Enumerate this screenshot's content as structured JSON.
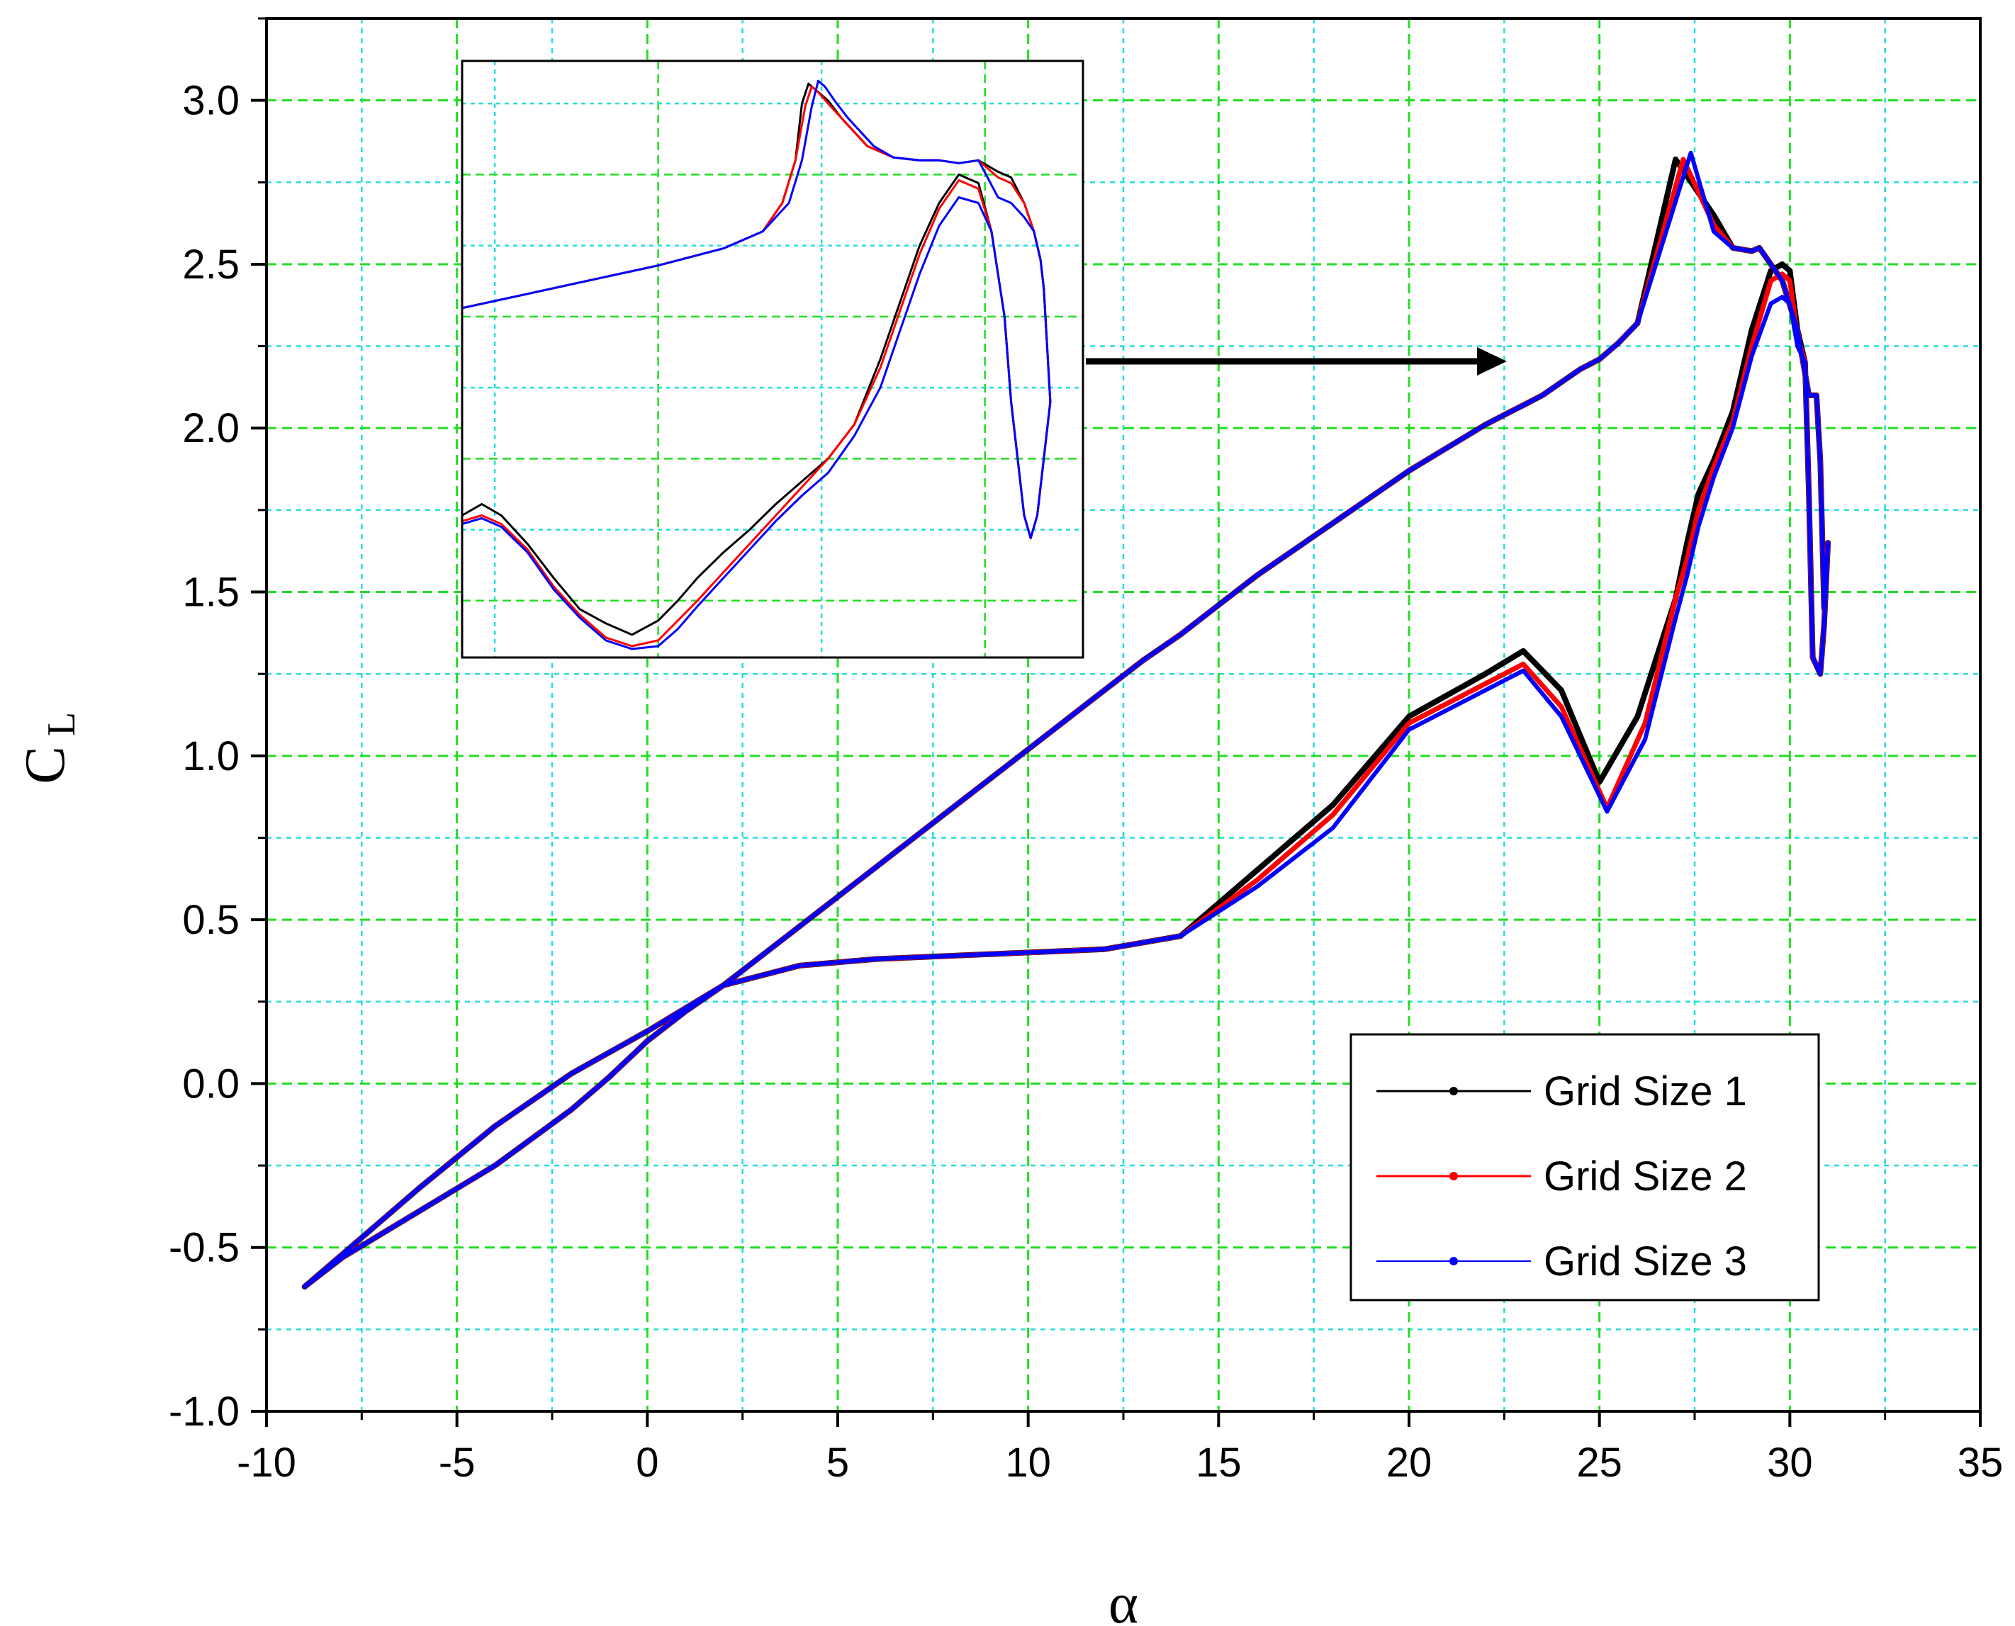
{
  "chart_data": [
    {
      "type": "line",
      "role": "main",
      "xlabel": "α",
      "ylabel": "C",
      "ylabel_sub": "L",
      "xlim": [
        -10,
        35
      ],
      "ylim": [
        -1.0,
        3.25
      ],
      "xticks": [
        -10,
        -5,
        0,
        5,
        10,
        15,
        20,
        25,
        30,
        35
      ],
      "xtick_labels": [
        "-10",
        "-5",
        "0",
        "5",
        "10",
        "15",
        "20",
        "25",
        "30",
        "35"
      ],
      "yticks": [
        -1.0,
        -0.5,
        0.0,
        0.5,
        1.0,
        1.5,
        2.0,
        2.5,
        3.0
      ],
      "ytick_labels": [
        "-1.0",
        "-0.5",
        "0.0",
        "0.5",
        "1.0",
        "1.5",
        "2.0",
        "2.5",
        "3.0"
      ],
      "grid": true,
      "legend_position": "bottom-right",
      "colors": {
        "grid_major": "#22dd22",
        "grid_minor": "#22dddd"
      },
      "series": [
        {
          "name": "Grid Size 1",
          "color": "#000000",
          "x": [
            -9.0,
            -8.0,
            -6.0,
            -4.0,
            -2.0,
            0.0,
            2.0,
            4.0,
            6.0,
            8.0,
            10.0,
            12.0,
            14.0,
            16.0,
            18.0,
            20.0,
            22.0,
            23.0,
            24.0,
            25.0,
            26.0,
            27.0,
            27.3,
            27.6,
            28.0,
            28.5,
            29.0,
            29.5,
            29.8,
            30.0,
            30.2,
            30.4,
            30.5,
            30.6,
            30.8,
            30.9,
            31.0,
            30.9,
            30.8,
            30.7,
            30.5,
            30.2,
            29.8,
            29.5,
            29.2,
            29.0,
            28.5,
            28.0,
            27.0,
            26.0,
            25.5,
            25.0,
            24.5,
            24.0,
            23.5,
            23.0,
            22.5,
            22.0,
            21.0,
            20.0,
            19.0,
            18.0,
            17.0,
            16.0,
            15.0,
            14.0,
            13.0,
            12.0,
            10.0,
            8.0,
            6.0,
            4.0,
            2.0,
            1.0,
            0.0,
            -1.0,
            -2.0,
            -4.0,
            -6.0,
            -8.0,
            -9.0
          ],
          "y": [
            -0.62,
            -0.52,
            -0.32,
            -0.13,
            0.03,
            0.16,
            0.3,
            0.36,
            0.38,
            0.39,
            0.4,
            0.41,
            0.45,
            0.65,
            0.85,
            1.12,
            1.25,
            1.32,
            1.2,
            0.92,
            1.12,
            1.48,
            1.65,
            1.8,
            1.9,
            2.05,
            2.3,
            2.48,
            2.5,
            2.48,
            2.3,
            2.2,
            1.8,
            1.3,
            1.25,
            1.4,
            1.65,
            1.45,
            1.9,
            2.1,
            2.1,
            2.3,
            2.45,
            2.5,
            2.55,
            2.54,
            2.55,
            2.65,
            2.82,
            2.32,
            2.26,
            2.21,
            2.18,
            2.14,
            2.1,
            2.07,
            2.04,
            2.01,
            1.94,
            1.87,
            1.79,
            1.71,
            1.63,
            1.55,
            1.46,
            1.37,
            1.29,
            1.2,
            1.02,
            0.84,
            0.66,
            0.48,
            0.3,
            0.22,
            0.13,
            0.02,
            -0.08,
            -0.25,
            -0.39,
            -0.53,
            -0.62
          ]
        },
        {
          "name": "Grid Size 2",
          "color": "#ff0000",
          "x": [
            -9.0,
            -8.0,
            -6.0,
            -4.0,
            -2.0,
            0.0,
            2.0,
            4.0,
            6.0,
            8.0,
            10.0,
            12.0,
            14.0,
            16.0,
            18.0,
            20.0,
            22.0,
            23.0,
            24.0,
            25.2,
            26.2,
            27.0,
            27.3,
            27.6,
            28.0,
            28.5,
            29.0,
            29.5,
            29.8,
            30.0,
            30.2,
            30.4,
            30.5,
            30.6,
            30.8,
            30.9,
            31.0,
            30.9,
            30.8,
            30.7,
            30.5,
            30.2,
            29.8,
            29.5,
            29.2,
            29.0,
            28.5,
            28.0,
            27.2,
            26.0,
            25.5,
            25.0,
            24.5,
            24.0,
            23.5,
            23.0,
            22.5,
            22.0,
            21.0,
            20.0,
            19.0,
            18.0,
            17.0,
            16.0,
            15.0,
            14.0,
            13.0,
            12.0,
            10.0,
            8.0,
            6.0,
            4.0,
            2.0,
            1.0,
            0.0,
            -1.0,
            -2.0,
            -4.0,
            -6.0,
            -8.0,
            -9.0
          ],
          "y": [
            -0.62,
            -0.52,
            -0.32,
            -0.13,
            0.03,
            0.16,
            0.3,
            0.36,
            0.38,
            0.39,
            0.4,
            0.41,
            0.45,
            0.62,
            0.82,
            1.1,
            1.22,
            1.28,
            1.15,
            0.84,
            1.1,
            1.48,
            1.6,
            1.75,
            1.88,
            2.02,
            2.25,
            2.45,
            2.47,
            2.45,
            2.28,
            2.2,
            1.8,
            1.3,
            1.25,
            1.4,
            1.65,
            1.45,
            1.9,
            2.1,
            2.1,
            2.3,
            2.45,
            2.5,
            2.55,
            2.54,
            2.55,
            2.62,
            2.82,
            2.32,
            2.26,
            2.21,
            2.18,
            2.14,
            2.1,
            2.07,
            2.04,
            2.01,
            1.94,
            1.87,
            1.79,
            1.71,
            1.63,
            1.55,
            1.46,
            1.37,
            1.29,
            1.2,
            1.02,
            0.84,
            0.66,
            0.48,
            0.3,
            0.22,
            0.13,
            0.02,
            -0.08,
            -0.25,
            -0.39,
            -0.53,
            -0.62
          ]
        },
        {
          "name": "Grid Size 3",
          "color": "#0000ff",
          "x": [
            -9.0,
            -8.0,
            -6.0,
            -4.0,
            -2.0,
            0.0,
            2.0,
            4.0,
            6.0,
            8.0,
            10.0,
            12.0,
            14.0,
            16.0,
            18.0,
            20.0,
            22.0,
            23.0,
            24.0,
            25.2,
            26.2,
            27.0,
            27.3,
            27.6,
            28.0,
            28.5,
            29.0,
            29.5,
            29.8,
            30.0,
            30.2,
            30.4,
            30.5,
            30.6,
            30.8,
            30.9,
            31.0,
            30.9,
            30.8,
            30.7,
            30.5,
            30.2,
            29.8,
            29.5,
            29.2,
            29.0,
            28.5,
            28.0,
            27.4,
            26.0,
            25.5,
            25.0,
            24.5,
            24.0,
            23.5,
            23.0,
            22.5,
            22.0,
            21.0,
            20.0,
            19.0,
            18.0,
            17.0,
            16.0,
            15.0,
            14.0,
            13.0,
            12.0,
            10.0,
            8.0,
            6.0,
            4.0,
            2.0,
            1.0,
            0.0,
            -1.0,
            -2.0,
            -4.0,
            -6.0,
            -8.0,
            -9.0
          ],
          "y": [
            -0.62,
            -0.52,
            -0.32,
            -0.13,
            0.03,
            0.16,
            0.3,
            0.36,
            0.38,
            0.39,
            0.4,
            0.41,
            0.45,
            0.6,
            0.78,
            1.08,
            1.2,
            1.26,
            1.12,
            0.83,
            1.05,
            1.42,
            1.55,
            1.7,
            1.85,
            2.0,
            2.22,
            2.38,
            2.4,
            2.38,
            2.25,
            2.2,
            1.8,
            1.3,
            1.25,
            1.4,
            1.65,
            1.45,
            1.9,
            2.1,
            2.1,
            2.3,
            2.45,
            2.5,
            2.55,
            2.54,
            2.55,
            2.6,
            2.84,
            2.32,
            2.26,
            2.21,
            2.18,
            2.14,
            2.1,
            2.07,
            2.04,
            2.01,
            1.94,
            1.87,
            1.79,
            1.71,
            1.63,
            1.55,
            1.46,
            1.37,
            1.29,
            1.2,
            1.02,
            0.84,
            0.66,
            0.48,
            0.3,
            0.22,
            0.13,
            0.02,
            -0.08,
            -0.25,
            -0.39,
            -0.53,
            -0.62
          ]
        }
      ]
    },
    {
      "type": "line",
      "role": "inset",
      "xlim": [
        22.0,
        31.5
      ],
      "ylim": [
        0.8,
        2.9
      ],
      "grid": true,
      "series": [
        {
          "name": "Grid Size 1",
          "color": "#000000",
          "x": [
            22.0,
            23.0,
            24.0,
            25.0,
            26.0,
            26.6,
            26.9,
            27.1,
            27.2,
            27.3,
            27.4,
            27.6,
            27.8,
            28.2,
            28.6,
            29.0,
            29.3,
            29.6,
            29.9,
            30.2,
            30.4,
            30.6,
            30.75,
            30.85,
            30.9,
            30.95,
            31.0,
            30.9,
            30.8,
            30.7,
            30.6,
            30.5,
            30.4,
            30.3,
            30.1,
            29.9,
            29.6,
            29.3,
            29.0,
            28.7,
            28.4,
            28.0,
            27.6,
            27.2,
            26.8,
            26.4,
            26.0,
            25.6,
            25.3,
            25.0,
            24.6,
            24.2,
            23.8,
            23.4,
            23.0,
            22.6,
            22.3,
            22.0
          ],
          "y": [
            2.03,
            2.08,
            2.13,
            2.18,
            2.24,
            2.3,
            2.4,
            2.55,
            2.75,
            2.82,
            2.8,
            2.76,
            2.7,
            2.6,
            2.56,
            2.55,
            2.55,
            2.54,
            2.55,
            2.51,
            2.49,
            2.4,
            2.3,
            2.2,
            2.1,
            1.9,
            1.7,
            1.5,
            1.3,
            1.22,
            1.3,
            1.5,
            1.7,
            2.0,
            2.3,
            2.47,
            2.5,
            2.4,
            2.25,
            2.05,
            1.85,
            1.62,
            1.5,
            1.42,
            1.34,
            1.25,
            1.17,
            1.08,
            1.0,
            0.93,
            0.88,
            0.92,
            0.97,
            1.08,
            1.2,
            1.3,
            1.34,
            1.3
          ]
        },
        {
          "name": "Grid Size 2",
          "color": "#ff0000",
          "x": [
            22.0,
            23.0,
            24.0,
            25.0,
            26.0,
            26.6,
            26.9,
            27.1,
            27.25,
            27.35,
            27.45,
            27.6,
            27.8,
            28.2,
            28.6,
            29.0,
            29.3,
            29.6,
            29.9,
            30.2,
            30.4,
            30.6,
            30.75,
            30.85,
            30.9,
            30.95,
            31.0,
            30.9,
            30.8,
            30.7,
            30.6,
            30.5,
            30.4,
            30.3,
            30.1,
            29.9,
            29.6,
            29.3,
            29.0,
            28.7,
            28.4,
            28.0,
            27.6,
            27.2,
            26.8,
            26.4,
            26.0,
            25.6,
            25.3,
            25.0,
            24.6,
            24.2,
            23.8,
            23.4,
            23.0,
            22.6,
            22.3,
            22.0
          ],
          "y": [
            2.03,
            2.08,
            2.13,
            2.18,
            2.24,
            2.3,
            2.4,
            2.55,
            2.74,
            2.81,
            2.79,
            2.75,
            2.7,
            2.6,
            2.56,
            2.55,
            2.55,
            2.54,
            2.55,
            2.49,
            2.47,
            2.4,
            2.3,
            2.2,
            2.1,
            1.9,
            1.7,
            1.5,
            1.3,
            1.22,
            1.3,
            1.5,
            1.7,
            2.0,
            2.3,
            2.45,
            2.48,
            2.38,
            2.22,
            2.02,
            1.82,
            1.62,
            1.5,
            1.4,
            1.3,
            1.2,
            1.1,
            1.0,
            0.93,
            0.86,
            0.84,
            0.87,
            0.95,
            1.05,
            1.18,
            1.27,
            1.3,
            1.28
          ]
        },
        {
          "name": "Grid Size 3",
          "color": "#0000ff",
          "x": [
            22.0,
            23.0,
            24.0,
            25.0,
            26.0,
            26.6,
            27.0,
            27.2,
            27.35,
            27.45,
            27.55,
            27.7,
            27.9,
            28.3,
            28.6,
            29.0,
            29.3,
            29.6,
            29.9,
            30.2,
            30.4,
            30.6,
            30.75,
            30.85,
            30.9,
            30.95,
            31.0,
            30.9,
            30.8,
            30.7,
            30.6,
            30.5,
            30.4,
            30.3,
            30.1,
            29.9,
            29.6,
            29.3,
            29.0,
            28.7,
            28.4,
            28.0,
            27.6,
            27.2,
            26.8,
            26.4,
            26.0,
            25.6,
            25.3,
            25.0,
            24.6,
            24.2,
            23.8,
            23.4,
            23.0,
            22.6,
            22.3,
            22.0
          ],
          "y": [
            2.03,
            2.08,
            2.13,
            2.18,
            2.24,
            2.3,
            2.4,
            2.55,
            2.74,
            2.83,
            2.81,
            2.76,
            2.7,
            2.6,
            2.56,
            2.55,
            2.55,
            2.54,
            2.55,
            2.42,
            2.4,
            2.35,
            2.3,
            2.2,
            2.1,
            1.9,
            1.7,
            1.5,
            1.3,
            1.22,
            1.3,
            1.5,
            1.7,
            2.0,
            2.3,
            2.4,
            2.42,
            2.32,
            2.15,
            1.95,
            1.75,
            1.58,
            1.45,
            1.37,
            1.28,
            1.18,
            1.08,
            0.98,
            0.9,
            0.84,
            0.83,
            0.86,
            0.94,
            1.04,
            1.17,
            1.26,
            1.29,
            1.27
          ]
        }
      ]
    }
  ]
}
